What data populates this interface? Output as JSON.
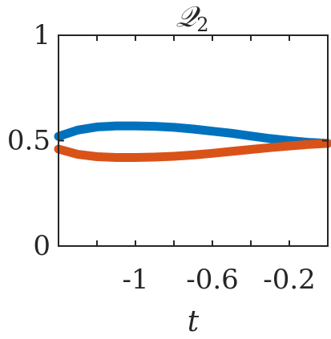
{
  "chart_data": {
    "type": "line",
    "title_base": "𝒬",
    "title_sub": "2",
    "xlabel": "t",
    "ylabel": "",
    "xlim": [
      -1.4,
      0.0
    ],
    "ylim": [
      0,
      1
    ],
    "xticks": [
      -1,
      -0.6,
      -0.2
    ],
    "xtick_labels": [
      "-1",
      "-0.6",
      "-0.2"
    ],
    "xticks_minor": [
      -1.2,
      -0.8,
      -0.4
    ],
    "yticks": [
      0,
      0.5,
      1
    ],
    "ytick_labels": [
      "0",
      "0.5",
      "1"
    ],
    "grid": false,
    "series": [
      {
        "color": "#0072BD",
        "x": [
          -1.4,
          -1.3,
          -1.2,
          -1.1,
          -1.0,
          -0.9,
          -0.8,
          -0.7,
          -0.6,
          -0.5,
          -0.4,
          -0.3,
          -0.2,
          -0.1,
          0.0
        ],
        "y": [
          0.52,
          0.55,
          0.565,
          0.57,
          0.57,
          0.568,
          0.563,
          0.555,
          0.545,
          0.535,
          0.522,
          0.51,
          0.5,
          0.492,
          0.487
        ]
      },
      {
        "color": "#D95319",
        "x": [
          -1.4,
          -1.3,
          -1.2,
          -1.1,
          -1.0,
          -0.9,
          -0.8,
          -0.7,
          -0.6,
          -0.5,
          -0.4,
          -0.3,
          -0.2,
          -0.1,
          0.0
        ],
        "y": [
          0.46,
          0.435,
          0.424,
          0.42,
          0.42,
          0.422,
          0.426,
          0.432,
          0.44,
          0.449,
          0.458,
          0.467,
          0.475,
          0.482,
          0.487
        ]
      }
    ]
  }
}
